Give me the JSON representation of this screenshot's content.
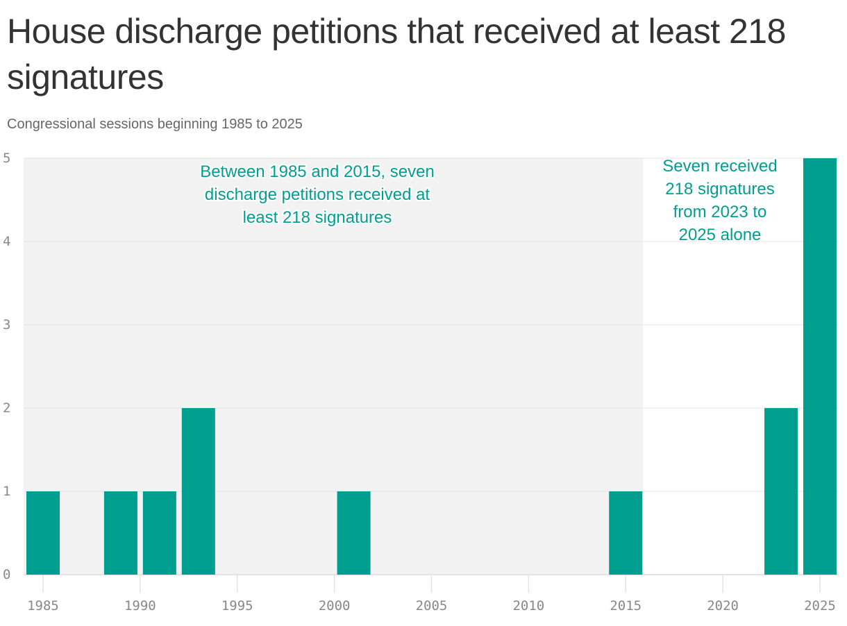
{
  "title": "House discharge petitions that received at least 218 signatures",
  "subtitle": "Congressional sessions beginning 1985 to 2025",
  "chart_data": {
    "type": "bar",
    "title": "House discharge petitions that received at least 218 signatures",
    "subtitle": "Congressional sessions beginning 1985 to 2025",
    "x": [
      1985,
      1989,
      1991,
      1993,
      2001,
      2015,
      2023,
      2025
    ],
    "values": [
      1,
      1,
      1,
      2,
      1,
      1,
      2,
      5
    ],
    "xlim": [
      1985,
      2025
    ],
    "ylim": [
      0,
      5
    ],
    "xticks": [
      "1985",
      "1990",
      "1995",
      "2000",
      "2005",
      "2010",
      "2015",
      "2020",
      "2025"
    ],
    "yticks": [
      "0",
      "1",
      "2",
      "3",
      "4",
      "5"
    ],
    "grid": true,
    "shaded_range": [
      1985,
      2016
    ],
    "bar_color": "#009e8f",
    "shade_color": "#f2f2f2",
    "annotations": [
      {
        "lines": [
          "Between 1985 and 2015, seven",
          "discharge petitions received at",
          "least 218 signatures"
        ]
      },
      {
        "lines": [
          "Seven received",
          "218 signatures",
          "from 2023 to",
          "2025 alone"
        ]
      }
    ]
  }
}
